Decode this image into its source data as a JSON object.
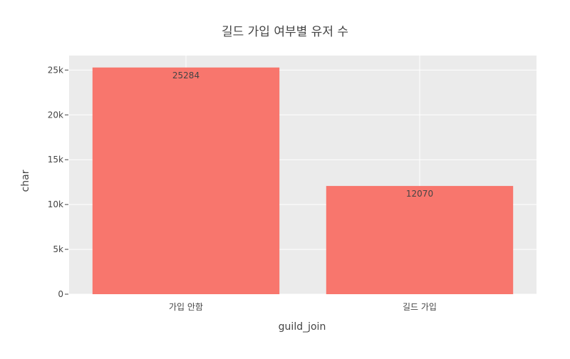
{
  "chart_data": {
    "type": "bar",
    "title": "길드 가입 여부별 유저 수",
    "xlabel": "guild_join",
    "ylabel": "char",
    "categories": [
      "가입 안함",
      "길드 가입"
    ],
    "values": [
      25284,
      12070
    ],
    "data_labels": [
      "25284",
      "12070"
    ],
    "ylim": [
      0,
      26615
    ],
    "yticks": [
      0,
      5000,
      10000,
      15000,
      20000,
      25000
    ],
    "ytick_labels": [
      "0",
      "5k",
      "10k",
      "15k",
      "20k",
      "25k"
    ],
    "grid": true,
    "legend": "none"
  },
  "colors": {
    "bar": "#f8766d",
    "plot_bg": "#ebebeb",
    "grid": "#ffffff",
    "text": "#444444"
  }
}
